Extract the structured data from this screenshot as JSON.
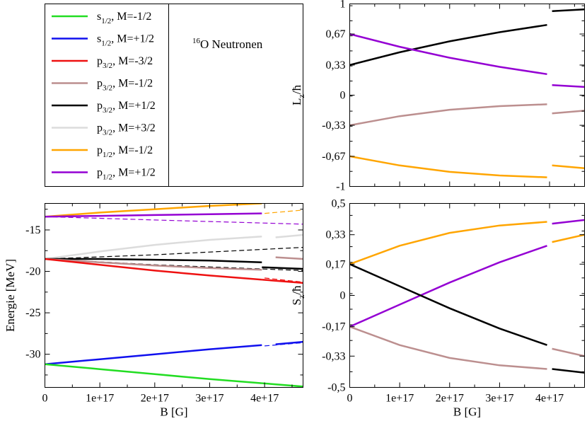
{
  "figure_title": "¹⁶O Neutronen",
  "figure_title_parts": {
    "sup": "16",
    "rest": "O Neutronen"
  },
  "legend": [
    {
      "key": "s12m",
      "orbital": "s",
      "sub": "1/2",
      "label": ", M=-1/2",
      "color": "#22dd22"
    },
    {
      "key": "s12p",
      "orbital": "s",
      "sub": "1/2",
      "label": ", M=+1/2",
      "color": "#1010ee"
    },
    {
      "key": "p32m3",
      "orbital": "p",
      "sub": "3/2",
      "label": ", M=-3/2",
      "color": "#ee1111"
    },
    {
      "key": "p32m1",
      "orbital": "p",
      "sub": "3/2",
      "label": ", M=-1/2",
      "color": "#bc8f8f"
    },
    {
      "key": "p32p1",
      "orbital": "p",
      "sub": "3/2",
      "label": ", M=+1/2",
      "color": "#000000"
    },
    {
      "key": "p32p3",
      "orbital": "p",
      "sub": "3/2",
      "label": ", M=+3/2",
      "color": "#dcdcdc"
    },
    {
      "key": "p12m",
      "orbital": "p",
      "sub": "1/2",
      "label": ", M=-1/2",
      "color": "#ffa500"
    },
    {
      "key": "p12p",
      "orbital": "p",
      "sub": "1/2",
      "label": ", M=+1/2",
      "color": "#9400d3"
    }
  ],
  "chart_data": [
    {
      "id": "energy",
      "type": "line",
      "xlabel": "B [G]",
      "ylabel": "Energie [MeV]",
      "xlim": [
        0,
        4.7e+17
      ],
      "ylim": [
        -34,
        -11.8
      ],
      "xticks": [
        0,
        1e+17,
        2e+17,
        3e+17,
        4e+17
      ],
      "xticklabels": [
        "0",
        "1e+17",
        "2e+17",
        "3e+17",
        "4e+17"
      ],
      "yticks": [
        -30,
        -25,
        -20,
        -15
      ],
      "yticklabels": [
        "-30",
        "-25",
        "-20",
        "-15"
      ],
      "series": [
        {
          "key": "p12m",
          "segments": [
            [
              [
                0,
                -13.4
              ],
              [
                1e+17,
                -12.9
              ],
              [
                2e+17,
                -12.5
              ],
              [
                3e+17,
                -12.1
              ],
              [
                3.95e+17,
                -11.8
              ]
            ],
            [
              [
                4.2e+17,
                -11.6
              ],
              [
                4.7e+17,
                -11.3
              ]
            ]
          ],
          "dashed": [
            [
              [
                4e+17,
                -13.0
              ],
              [
                4.7e+17,
                -12.6
              ]
            ]
          ]
        },
        {
          "key": "p12p",
          "segments": [
            [
              [
                0,
                -13.4
              ],
              [
                1e+17,
                -13.3
              ],
              [
                2e+17,
                -13.2
              ],
              [
                3e+17,
                -13.1
              ],
              [
                3.95e+17,
                -13.0
              ]
            ],
            [
              [
                4.2e+17,
                -11.0
              ],
              [
                4.7e+17,
                -10.8
              ]
            ]
          ],
          "dashed": [
            [
              [
                0,
                -13.4
              ],
              [
                2e+17,
                -13.8
              ],
              [
                4.7e+17,
                -14.3
              ]
            ]
          ]
        },
        {
          "key": "p32p3",
          "segments": [
            [
              [
                0,
                -18.5
              ],
              [
                1e+17,
                -17.6
              ],
              [
                2e+17,
                -16.8
              ],
              [
                3e+17,
                -16.2
              ],
              [
                3.95e+17,
                -15.8
              ]
            ],
            [
              [
                4.2e+17,
                -15.9
              ],
              [
                4.7e+17,
                -15.6
              ]
            ]
          ],
          "dashed": []
        },
        {
          "key": "p32p1",
          "segments": [
            [
              [
                0,
                -18.5
              ],
              [
                1e+17,
                -18.5
              ],
              [
                2e+17,
                -18.6
              ],
              [
                3e+17,
                -18.7
              ],
              [
                3.95e+17,
                -18.9
              ]
            ],
            [
              [
                3.95e+17,
                -19.5
              ],
              [
                4.7e+17,
                -19.7
              ]
            ]
          ],
          "dashed": [
            [
              [
                0,
                -18.5
              ],
              [
                2e+17,
                -18.0
              ],
              [
                4.7e+17,
                -17.1
              ]
            ],
            [
              [
                0,
                -18.5
              ],
              [
                2e+17,
                -19.2
              ],
              [
                4.7e+17,
                -19.9
              ]
            ]
          ]
        },
        {
          "key": "p32m1",
          "segments": [
            [
              [
                0,
                -18.5
              ],
              [
                1e+17,
                -18.9
              ],
              [
                2e+17,
                -19.3
              ],
              [
                3e+17,
                -19.6
              ],
              [
                3.95e+17,
                -19.8
              ]
            ],
            [
              [
                4.2e+17,
                -18.3
              ],
              [
                4.7e+17,
                -18.5
              ]
            ]
          ],
          "dashed": []
        },
        {
          "key": "p32m3",
          "segments": [
            [
              [
                0,
                -18.5
              ],
              [
                1e+17,
                -19.2
              ],
              [
                2e+17,
                -19.9
              ],
              [
                3e+17,
                -20.5
              ],
              [
                3.95e+17,
                -21.0
              ]
            ],
            [
              [
                3.95e+17,
                -21.0
              ],
              [
                4.7e+17,
                -21.4
              ]
            ]
          ],
          "dashed": [
            [
              [
                4e+17,
                -20.8
              ],
              [
                4.7e+17,
                -21.3
              ]
            ]
          ]
        },
        {
          "key": "s12p",
          "segments": [
            [
              [
                0,
                -31.2
              ],
              [
                1e+17,
                -30.6
              ],
              [
                2e+17,
                -30.0
              ],
              [
                3e+17,
                -29.4
              ],
              [
                3.95e+17,
                -28.9
              ]
            ],
            [
              [
                4.2e+17,
                -28.8
              ],
              [
                4.7e+17,
                -28.5
              ]
            ]
          ],
          "dashed": [
            [
              [
                4e+17,
                -29.0
              ],
              [
                4.7e+17,
                -28.6
              ]
            ]
          ]
        },
        {
          "key": "s12m",
          "segments": [
            [
              [
                0,
                -31.2
              ],
              [
                1e+17,
                -31.8
              ],
              [
                2e+17,
                -32.4
              ],
              [
                3e+17,
                -33.0
              ],
              [
                3.95e+17,
                -33.5
              ]
            ],
            [
              [
                3.95e+17,
                -33.5
              ],
              [
                4.7e+17,
                -33.9
              ]
            ]
          ],
          "dashed": []
        }
      ]
    },
    {
      "id": "lz",
      "type": "line",
      "xlabel": "",
      "ylabel": "L_z/ħ",
      "xlim": [
        0,
        4.7e+17
      ],
      "ylim": [
        -1,
        1
      ],
      "xticks": [
        0,
        1e+17,
        2e+17,
        3e+17,
        4e+17
      ],
      "xticklabels": [],
      "yticks": [
        1,
        0.67,
        0.33,
        0,
        -0.33,
        -0.67,
        -1
      ],
      "yticklabels": [
        "1",
        "0,67",
        "0,33",
        "0",
        "-0,33",
        "-0,67",
        "-1"
      ],
      "series": [
        {
          "key": "p32p1",
          "segments": [
            [
              [
                0,
                0.33
              ],
              [
                1e+17,
                0.47
              ],
              [
                2e+17,
                0.59
              ],
              [
                3e+17,
                0.69
              ],
              [
                3.95e+17,
                0.77
              ]
            ],
            [
              [
                4.05e+17,
                0.92
              ],
              [
                4.7e+17,
                0.94
              ]
            ]
          ],
          "dashed": []
        },
        {
          "key": "p12p",
          "segments": [
            [
              [
                0,
                0.67
              ],
              [
                1e+17,
                0.53
              ],
              [
                2e+17,
                0.41
              ],
              [
                3e+17,
                0.31
              ],
              [
                3.95e+17,
                0.23
              ]
            ],
            [
              [
                4.05e+17,
                0.11
              ],
              [
                4.7e+17,
                0.09
              ]
            ]
          ],
          "dashed": []
        },
        {
          "key": "p32m1",
          "segments": [
            [
              [
                0,
                -0.33
              ],
              [
                1e+17,
                -0.23
              ],
              [
                2e+17,
                -0.16
              ],
              [
                3e+17,
                -0.12
              ],
              [
                3.95e+17,
                -0.1
              ]
            ],
            [
              [
                4.05e+17,
                -0.2
              ],
              [
                4.7e+17,
                -0.17
              ]
            ]
          ],
          "dashed": []
        },
        {
          "key": "p12m",
          "segments": [
            [
              [
                0,
                -0.67
              ],
              [
                1e+17,
                -0.77
              ],
              [
                2e+17,
                -0.84
              ],
              [
                3e+17,
                -0.88
              ],
              [
                3.95e+17,
                -0.9
              ]
            ],
            [
              [
                4.05e+17,
                -0.77
              ],
              [
                4.7e+17,
                -0.8
              ]
            ]
          ],
          "dashed": []
        }
      ]
    },
    {
      "id": "sz",
      "type": "line",
      "xlabel": "B [G]",
      "ylabel": "S_z/ħ",
      "xlim": [
        0,
        4.7e+17
      ],
      "ylim": [
        -0.5,
        0.5
      ],
      "xticks": [
        0,
        1e+17,
        2e+17,
        3e+17,
        4e+17
      ],
      "xticklabels": [
        "0",
        "1e+17",
        "2e+17",
        "3e+17",
        "4e+17"
      ],
      "yticks": [
        0.5,
        0.33,
        0.17,
        0,
        -0.17,
        -0.33,
        -0.5
      ],
      "yticklabels": [
        "0,5",
        "0,33",
        "0,17",
        "0",
        "-0,17",
        "-0,33",
        "-0,5"
      ],
      "series": [
        {
          "key": "p12m",
          "segments": [
            [
              [
                0,
                0.17
              ],
              [
                1e+17,
                0.27
              ],
              [
                2e+17,
                0.34
              ],
              [
                3e+17,
                0.38
              ],
              [
                3.95e+17,
                0.4
              ]
            ],
            [
              [
                4.05e+17,
                0.29
              ],
              [
                4.7e+17,
                0.33
              ]
            ]
          ],
          "dashed": []
        },
        {
          "key": "p12p",
          "segments": [
            [
              [
                0,
                -0.17
              ],
              [
                1e+17,
                -0.05
              ],
              [
                2e+17,
                0.07
              ],
              [
                3e+17,
                0.18
              ],
              [
                3.95e+17,
                0.27
              ]
            ],
            [
              [
                4.05e+17,
                0.39
              ],
              [
                4.7e+17,
                0.41
              ]
            ]
          ],
          "dashed": []
        },
        {
          "key": "p32p1",
          "segments": [
            [
              [
                0,
                0.17
              ],
              [
                1e+17,
                0.05
              ],
              [
                2e+17,
                -0.07
              ],
              [
                3e+17,
                -0.18
              ],
              [
                3.95e+17,
                -0.27
              ]
            ],
            [
              [
                4.05e+17,
                -0.4
              ],
              [
                4.7e+17,
                -0.42
              ]
            ]
          ],
          "dashed": []
        },
        {
          "key": "p32m1",
          "segments": [
            [
              [
                0,
                -0.17
              ],
              [
                1e+17,
                -0.27
              ],
              [
                2e+17,
                -0.34
              ],
              [
                3e+17,
                -0.38
              ],
              [
                3.95e+17,
                -0.4
              ]
            ],
            [
              [
                4.05e+17,
                -0.29
              ],
              [
                4.7e+17,
                -0.33
              ]
            ]
          ],
          "dashed": []
        }
      ]
    }
  ]
}
